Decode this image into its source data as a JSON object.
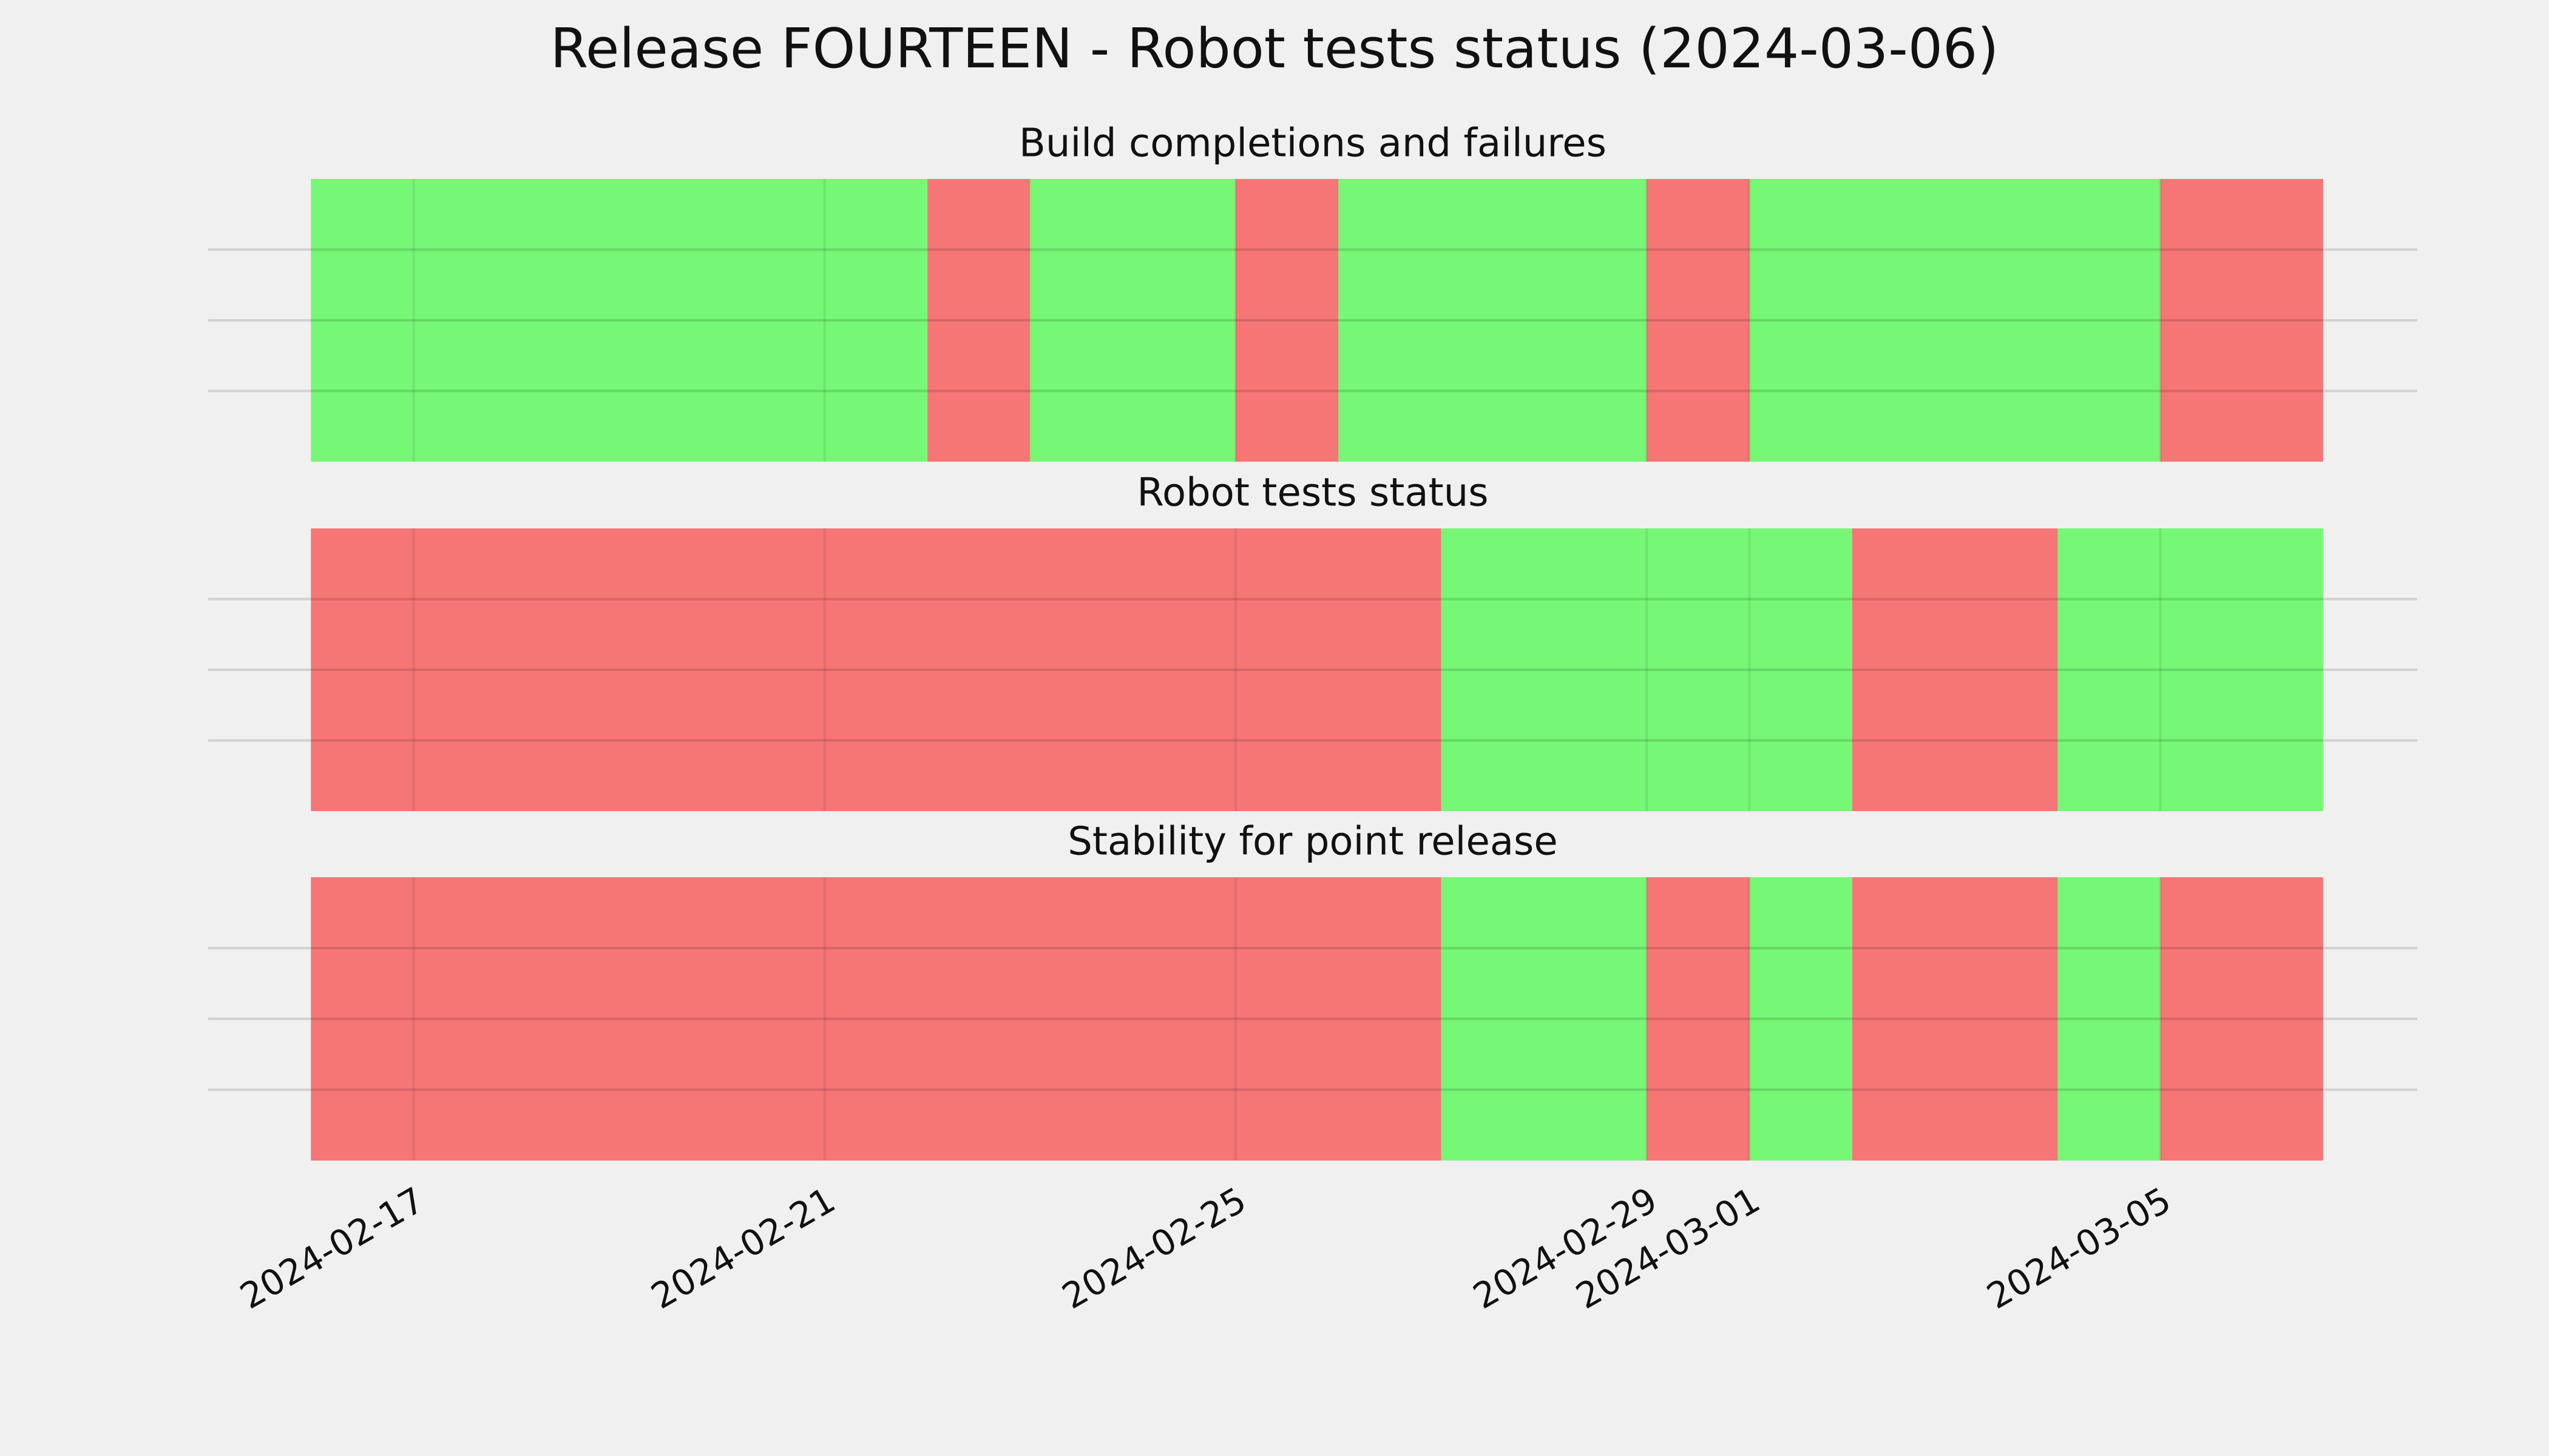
{
  "title": "Release FOURTEEN - Robot tests status (2024-03-06)",
  "chart_data": [
    {
      "type": "timeline",
      "title": "Build completions and failures",
      "xlim": [
        "2024-02-15",
        "2024-03-07T12:00"
      ],
      "xticks": [
        "2024-02-17",
        "2024-02-21",
        "2024-02-25",
        "2024-02-29",
        "2024-03-01",
        "2024-03-05"
      ],
      "ylim": [
        0,
        1
      ],
      "yticks": [
        0.25,
        0.5,
        0.75
      ],
      "grid": true,
      "spans": [
        {
          "start": "2024-02-16",
          "end": "2024-02-22",
          "color": "#76f776"
        },
        {
          "start": "2024-02-22",
          "end": "2024-02-23",
          "color": "#f67676"
        },
        {
          "start": "2024-02-23",
          "end": "2024-02-25",
          "color": "#76f776"
        },
        {
          "start": "2024-02-25",
          "end": "2024-02-26",
          "color": "#f67676"
        },
        {
          "start": "2024-02-26",
          "end": "2024-02-29",
          "color": "#76f776"
        },
        {
          "start": "2024-02-29",
          "end": "2024-03-01",
          "color": "#f67676"
        },
        {
          "start": "2024-03-01",
          "end": "2024-03-05",
          "color": "#76f776"
        },
        {
          "start": "2024-03-05",
          "end": "2024-03-06T14:00",
          "color": "#f67676"
        }
      ]
    },
    {
      "type": "timeline",
      "title": "Robot tests status",
      "xlim": [
        "2024-02-15",
        "2024-03-07T12:00"
      ],
      "xticks": [
        "2024-02-17",
        "2024-02-21",
        "2024-02-25",
        "2024-02-29",
        "2024-03-01",
        "2024-03-05"
      ],
      "ylim": [
        0,
        1
      ],
      "yticks": [
        0.25,
        0.5,
        0.75
      ],
      "grid": true,
      "spans": [
        {
          "start": "2024-02-16",
          "end": "2024-02-27",
          "color": "#f67676"
        },
        {
          "start": "2024-02-27",
          "end": "2024-03-02",
          "color": "#76f776"
        },
        {
          "start": "2024-03-02",
          "end": "2024-03-04",
          "color": "#f67676"
        },
        {
          "start": "2024-03-04",
          "end": "2024-03-06T14:00",
          "color": "#76f776"
        }
      ]
    },
    {
      "type": "timeline",
      "title": "Stability for point release",
      "xlim": [
        "2024-02-15",
        "2024-03-07T12:00"
      ],
      "xticks": [
        "2024-02-17",
        "2024-02-21",
        "2024-02-25",
        "2024-02-29",
        "2024-03-01",
        "2024-03-05"
      ],
      "ylim": [
        0,
        1
      ],
      "yticks": [
        0.25,
        0.5,
        0.75
      ],
      "grid": true,
      "show_xtick_labels": true,
      "spans": [
        {
          "start": "2024-02-16",
          "end": "2024-02-27",
          "color": "#f67676"
        },
        {
          "start": "2024-02-27",
          "end": "2024-02-29",
          "color": "#76f776"
        },
        {
          "start": "2024-02-29",
          "end": "2024-03-01",
          "color": "#f67676"
        },
        {
          "start": "2024-03-01",
          "end": "2024-03-02",
          "color": "#76f776"
        },
        {
          "start": "2024-03-02",
          "end": "2024-03-04",
          "color": "#f67676"
        },
        {
          "start": "2024-03-04",
          "end": "2024-03-05",
          "color": "#76f776"
        },
        {
          "start": "2024-03-05",
          "end": "2024-03-06T14:00",
          "color": "#f67676"
        }
      ]
    }
  ]
}
